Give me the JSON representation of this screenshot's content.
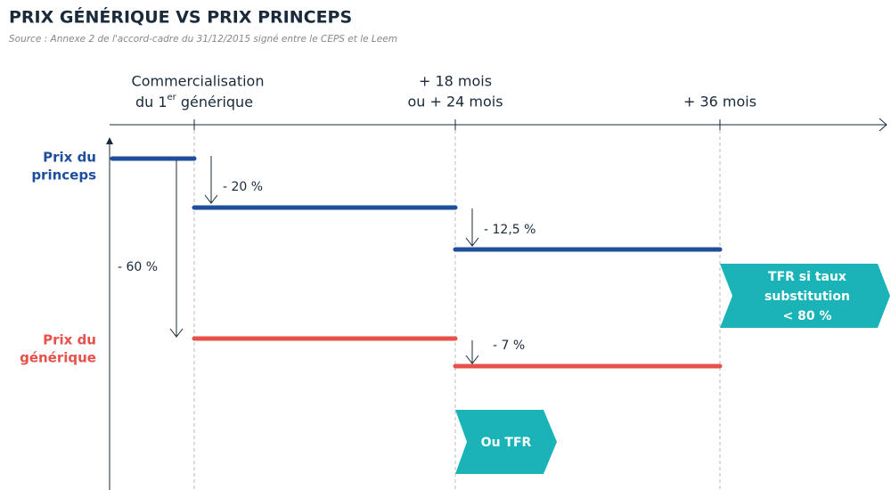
{
  "header": {
    "title": "PRIX GÉNÉRIQUE VS PRIX PRINCEPS",
    "source": "Source : Annexe 2 de l'accord-cadre du 31/12/2015 signé entre le CEPS et le Leem"
  },
  "milestones": [
    {
      "line1": "Commercialisation",
      "line2": [
        "du 1",
        "er",
        " générique"
      ]
    },
    {
      "lines": [
        "+ 18 mois",
        "ou + 24 mois"
      ]
    },
    {
      "lines": [
        "+ 36 mois"
      ]
    }
  ],
  "prices": {
    "princeps": [
      "Prix du",
      "princeps"
    ],
    "generique": [
      "Prix du",
      "générique"
    ]
  },
  "reductions": [
    "- 20 %",
    "- 12,5 %",
    "- 60 %",
    "- 7 %"
  ],
  "boxes": [
    {
      "lines": [
        "TFR si taux",
        "substitution",
        "< 80 %"
      ]
    },
    {
      "lines": [
        "Ou TFR"
      ]
    }
  ]
}
